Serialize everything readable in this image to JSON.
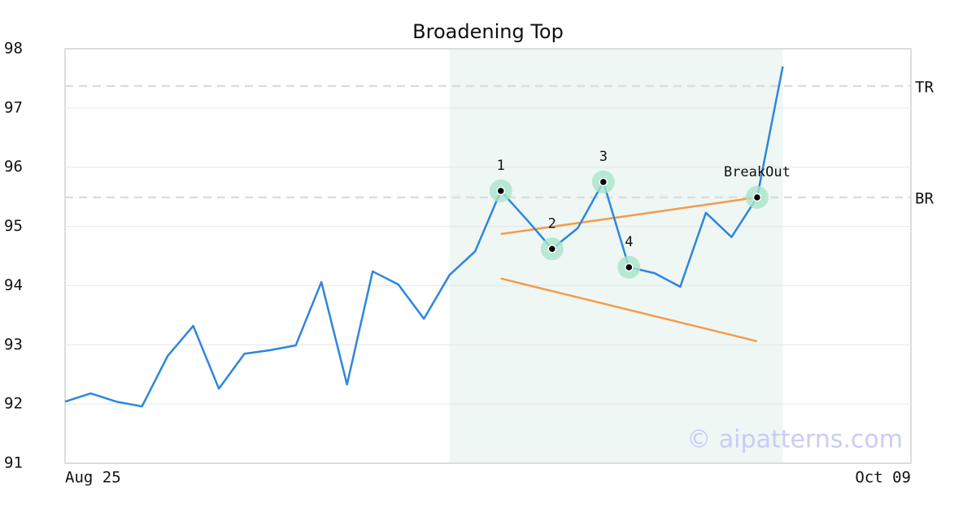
{
  "chart_data": {
    "type": "line",
    "title": "Broadening Top",
    "x": [
      0,
      1,
      2,
      3,
      4,
      5,
      6,
      7,
      8,
      9,
      10,
      11,
      12,
      13,
      14,
      15,
      16,
      17,
      18,
      19,
      20,
      21,
      22,
      23,
      24,
      25,
      26,
      27,
      28
    ],
    "values": [
      92.04,
      92.18,
      92.04,
      91.96,
      92.81,
      93.32,
      92.26,
      92.85,
      92.91,
      92.99,
      94.06,
      92.33,
      94.24,
      94.02,
      93.44,
      94.18,
      94.58,
      95.6,
      95.12,
      94.62,
      94.97,
      95.75,
      94.31,
      94.21,
      93.98,
      95.23,
      94.82,
      95.49,
      97.7
    ],
    "color": "#2e86de",
    "xlim": [
      0,
      33
    ],
    "xticks": [
      {
        "value": 0,
        "label": "Aug 25"
      },
      {
        "value": 33,
        "label": "Oct 09"
      }
    ],
    "ylim": [
      91,
      98
    ],
    "yticks": [
      91,
      92,
      93,
      94,
      95,
      96,
      97,
      98
    ],
    "grid": true,
    "highlight": {
      "x": [
        15,
        28
      ],
      "color": "#eef7f3"
    },
    "levels": [
      {
        "label": "TR",
        "value": 97.37
      },
      {
        "label": "BR",
        "value": 95.49
      }
    ],
    "trendlines": [
      {
        "x": [
          17,
          27
        ],
        "values": [
          94.87,
          95.49
        ],
        "color": "#f39c4a"
      },
      {
        "x": [
          17,
          27
        ],
        "values": [
          94.12,
          93.06
        ],
        "color": "#f39c4a"
      }
    ],
    "points": [
      {
        "label": "1",
        "x": 17
      },
      {
        "label": "2",
        "x": 19
      },
      {
        "label": "3",
        "x": 21
      },
      {
        "label": "4",
        "x": 22
      },
      {
        "label": "BreakOut",
        "x": 27
      }
    ],
    "watermark": "© aipatterns.com"
  }
}
